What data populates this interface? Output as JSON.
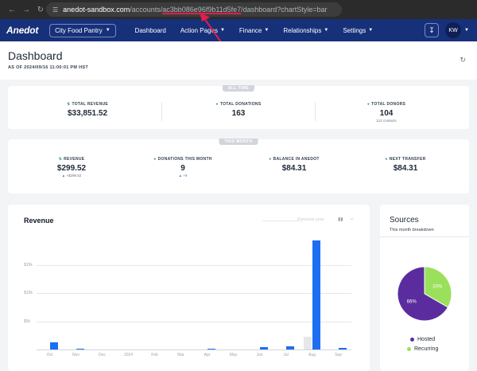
{
  "browser": {
    "back_icon": "back-arrow-icon",
    "forward_icon": "forward-arrow-icon",
    "reload_icon": "reload-icon",
    "url_host": "anedot-sandbox.com",
    "url_path_pre": "/accounts/",
    "url_account": "ac3bb086e96f9b11d5fe7",
    "url_path_post": "/dashboard?chartStyle=bar"
  },
  "header": {
    "logo": "Anedot",
    "org_select": "City Food Pantry",
    "nav": [
      "Dashboard",
      "Action Pages",
      "Finance",
      "Relationships",
      "Settings"
    ],
    "avatar": "KW"
  },
  "page": {
    "title": "Dashboard",
    "as_of": "AS OF 2024/09/16 11:00:01 PM HST"
  },
  "all_time": {
    "badge": "ALL TIME",
    "stats": [
      {
        "label": "TOTAL REVENUE",
        "value": "$33,851.52",
        "sub": ""
      },
      {
        "label": "TOTAL DONATIONS",
        "value": "163",
        "sub": ""
      },
      {
        "label": "TOTAL DONORS",
        "value": "104",
        "sub": "113 contacts"
      }
    ]
  },
  "this_month": {
    "badge": "THIS MONTH",
    "stats": [
      {
        "label": "REVENUE",
        "value": "$299.52",
        "sub": "+$299.52"
      },
      {
        "label": "DONATIONS THIS MONTH",
        "value": "9",
        "sub": "+9"
      },
      {
        "label": "BALANCE IN ANEDOT",
        "value": "$84.31",
        "sub": ""
      },
      {
        "label": "NEXT TRANSFER",
        "value": "$84.31",
        "sub": ""
      }
    ]
  },
  "revenue": {
    "title": "Revenue",
    "previous_year": "Previous year",
    "bar_icon": "bar-chart-icon",
    "line_icon": "line-chart-icon"
  },
  "sources": {
    "title": "Sources",
    "subtitle": "This month breakdown",
    "legend": [
      {
        "label": "Hosted",
        "color": "#5b2c9e"
      },
      {
        "label": "Recurring",
        "color": "#9be05a"
      }
    ]
  },
  "chart_data": [
    {
      "type": "bar",
      "title": "Revenue",
      "categories": [
        "Oct",
        "Nov",
        "Dec",
        "2024",
        "Feb",
        "Mar",
        "Apr",
        "May",
        "Jun",
        "Jul",
        "Aug",
        "Sep"
      ],
      "yticks": [
        "$5k",
        "$10k",
        "$15k"
      ],
      "ylim": [
        0,
        20000
      ],
      "series": [
        {
          "name": "Previous year",
          "color": "#e5e7eb",
          "values": [
            0,
            0,
            0,
            0,
            0,
            0,
            0,
            0,
            0,
            0,
            2200,
            0
          ]
        },
        {
          "name": "",
          "color": "#1d6ff2",
          "values": [
            1300,
            200,
            0,
            0,
            0,
            0,
            200,
            0,
            400,
            600,
            19300,
            300
          ]
        }
      ],
      "grid": true
    },
    {
      "type": "pie",
      "title": "Sources",
      "labels": [
        "Hosted",
        "Recurring"
      ],
      "values": [
        66,
        33
      ],
      "value_labels": [
        "66%",
        "33%"
      ],
      "colors": [
        "#5b2c9e",
        "#9be05a"
      ]
    }
  ]
}
